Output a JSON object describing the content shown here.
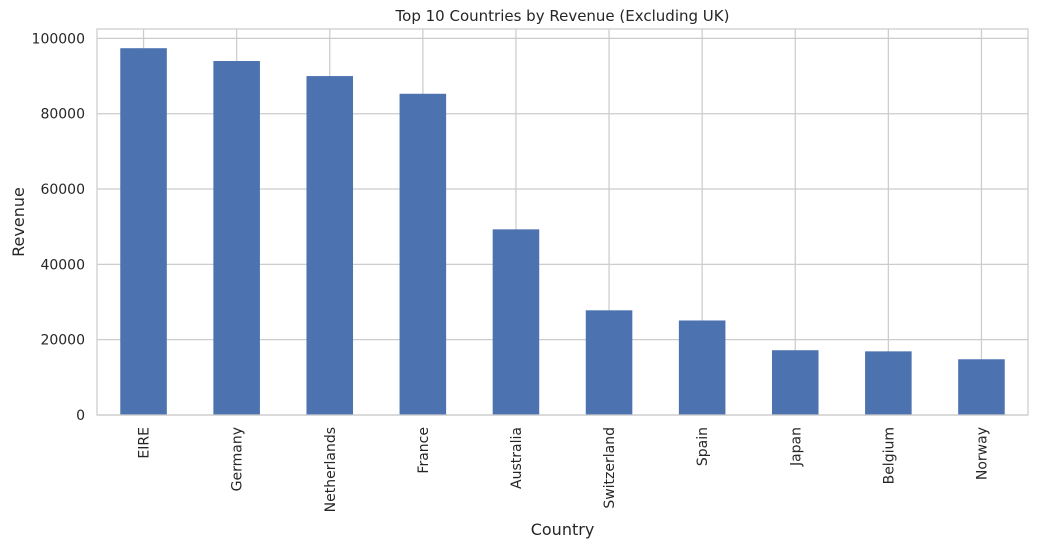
{
  "chart_data": {
    "type": "bar",
    "title": "Top 10 Countries by Revenue (Excluding UK)",
    "xlabel": "Country",
    "ylabel": "Revenue",
    "categories": [
      "EIRE",
      "Germany",
      "Netherlands",
      "France",
      "Australia",
      "Switzerland",
      "Spain",
      "Japan",
      "Belgium",
      "Norway"
    ],
    "values": [
      97400,
      94000,
      90000,
      85300,
      49300,
      27800,
      25100,
      17200,
      16900,
      14800
    ],
    "ylim": [
      0,
      102500
    ],
    "yticks": [
      0,
      20000,
      40000,
      60000,
      80000,
      100000
    ],
    "ytick_labels": [
      "0",
      "20000",
      "40000",
      "60000",
      "80000",
      "100000"
    ],
    "grid": true,
    "legend": "none",
    "colors": {
      "bar": "#4c72b0",
      "grid": "#cccccc",
      "axes_edge": "#cccccc",
      "background": "#ffffff"
    }
  }
}
